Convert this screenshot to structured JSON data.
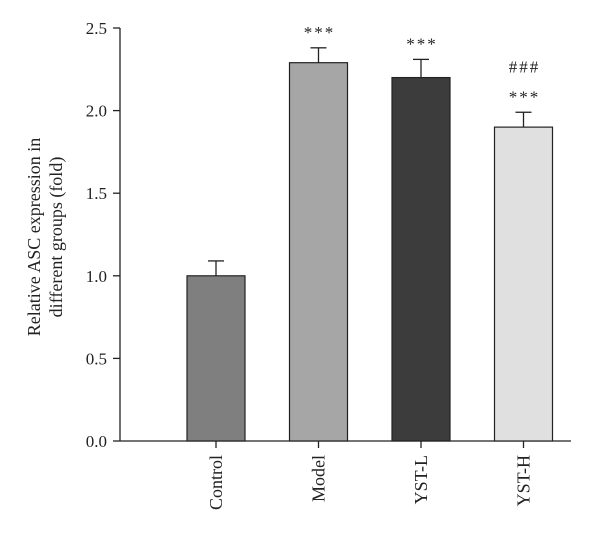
{
  "chart_data": {
    "type": "bar",
    "categories": [
      "Control",
      "Model",
      "YST-L",
      "YST-H"
    ],
    "values": [
      1.0,
      2.29,
      2.2,
      1.9
    ],
    "errors": [
      0.09,
      0.09,
      0.11,
      0.09
    ],
    "colors": [
      "#7f7f7f",
      "#a6a6a6",
      "#3c3c3c",
      "#e0e0e0"
    ],
    "annotations": [
      {
        "category": "Model",
        "lines": [
          "***"
        ]
      },
      {
        "category": "YST-L",
        "lines": [
          "***"
        ]
      },
      {
        "category": "YST-H",
        "lines": [
          "###",
          "***"
        ]
      }
    ],
    "ylabel_lines": [
      "Relative ASC expression in",
      "different groups (fold)"
    ],
    "ylim": [
      0,
      2.5
    ],
    "yticks": [
      "0.0",
      "0.5",
      "1.0",
      "1.5",
      "2.0",
      "2.5"
    ],
    "grid": false,
    "legend": "none"
  }
}
